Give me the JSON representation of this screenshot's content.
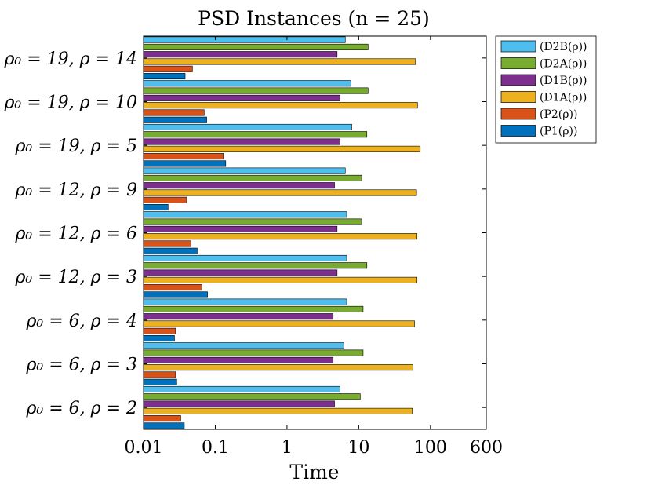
{
  "chart_data": {
    "type": "bar",
    "orientation": "horizontal",
    "title": "PSD Instances (n = 25)",
    "xlabel": "Time",
    "ylabel": "",
    "xscale": "log",
    "xlim": [
      0.01,
      600
    ],
    "xticks": [
      {
        "value": 0.01,
        "label": "0.01"
      },
      {
        "value": 0.1,
        "label": "0.1"
      },
      {
        "value": 1,
        "label": "1"
      },
      {
        "value": 10,
        "label": "10"
      },
      {
        "value": 100,
        "label": "100"
      },
      {
        "value": 600,
        "label": "600"
      }
    ],
    "categories": [
      "ρ₀ = 19, ρ = 14",
      "ρ₀ = 19, ρ = 10",
      "ρ₀ = 19, ρ = 5",
      "ρ₀ = 12, ρ = 9",
      "ρ₀ = 12, ρ = 6",
      "ρ₀ = 12, ρ = 3",
      "ρ₀ = 6, ρ = 4",
      "ρ₀ = 6, ρ = 3",
      "ρ₀ = 6, ρ = 2"
    ],
    "legend_position": "outside-top-right",
    "series": [
      {
        "name": "(D2B(ρ))",
        "color": "#4DBEEE",
        "values": [
          6.5,
          7.8,
          8.0,
          6.5,
          6.8,
          6.8,
          6.8,
          6.2,
          5.5
        ]
      },
      {
        "name": "(D2A(ρ))",
        "color": "#77AC30",
        "values": [
          13.5,
          13.5,
          13.0,
          11.0,
          11.0,
          13.0,
          11.5,
          11.5,
          10.5
        ]
      },
      {
        "name": "(D1B(ρ))",
        "color": "#7E2F8E",
        "values": [
          5.0,
          5.5,
          5.5,
          4.6,
          5.0,
          5.0,
          4.4,
          4.4,
          4.6
        ]
      },
      {
        "name": "(D1A(ρ))",
        "color": "#EDB120",
        "values": [
          62,
          66,
          72,
          64,
          65,
          65,
          60,
          57,
          56
        ]
      },
      {
        "name": "(P2(ρ))",
        "color": "#D95319",
        "values": [
          0.048,
          0.07,
          0.13,
          0.04,
          0.046,
          0.065,
          0.028,
          0.028,
          0.033
        ]
      },
      {
        "name": "(P1(ρ))",
        "color": "#0072BD",
        "values": [
          0.038,
          0.076,
          0.14,
          0.022,
          0.056,
          0.078,
          0.027,
          0.029,
          0.037
        ]
      }
    ]
  }
}
